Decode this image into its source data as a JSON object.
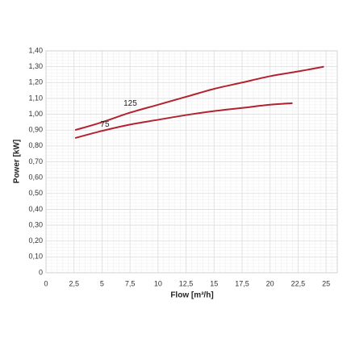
{
  "chart_data": {
    "type": "line",
    "x_label": "Flow [m³/h]",
    "y_label": "Power [kW]",
    "xlim": [
      0,
      26
    ],
    "ylim": [
      0,
      1.4
    ],
    "xticks": [
      0,
      {
        "value": 2.5,
        "label": "2,5"
      },
      5,
      {
        "value": 7.5,
        "label": "7,5"
      },
      10,
      {
        "value": 12.5,
        "label": "12,5"
      },
      15,
      {
        "value": 17.5,
        "label": "17,5"
      },
      20,
      {
        "value": 22.5,
        "label": "22,5"
      },
      25
    ],
    "yticks": [
      0,
      {
        "value": 0.1,
        "label": "0,10"
      },
      {
        "value": 0.2,
        "label": "0,20"
      },
      {
        "value": 0.3,
        "label": "0,30"
      },
      {
        "value": 0.4,
        "label": "0,40"
      },
      {
        "value": 0.5,
        "label": "0,50"
      },
      {
        "value": 0.6,
        "label": "0,60"
      },
      {
        "value": 0.7,
        "label": "0,70"
      },
      {
        "value": 0.8,
        "label": "0,80"
      },
      {
        "value": 0.9,
        "label": "0,90"
      },
      {
        "value": 1.0,
        "label": "1,00"
      },
      {
        "value": 1.1,
        "label": "1,10"
      },
      {
        "value": 1.2,
        "label": "1,20"
      },
      {
        "value": 1.3,
        "label": "1,30"
      },
      {
        "value": 1.4,
        "label": "1,40"
      }
    ],
    "grid": true,
    "series": [
      {
        "name": "125",
        "color": "#b3232f",
        "x": [
          2.6,
          5,
          7.5,
          10,
          12.5,
          15,
          17.5,
          20,
          22.5,
          24.8
        ],
        "values": [
          0.9,
          0.95,
          1.01,
          1.06,
          1.11,
          1.16,
          1.2,
          1.24,
          1.27,
          1.3
        ]
      },
      {
        "name": "75",
        "color": "#b3232f",
        "x": [
          2.6,
          5,
          7.5,
          10,
          12.5,
          15,
          17.5,
          20,
          22
        ],
        "values": [
          0.85,
          0.895,
          0.935,
          0.965,
          0.995,
          1.02,
          1.04,
          1.06,
          1.07
        ]
      }
    ]
  }
}
